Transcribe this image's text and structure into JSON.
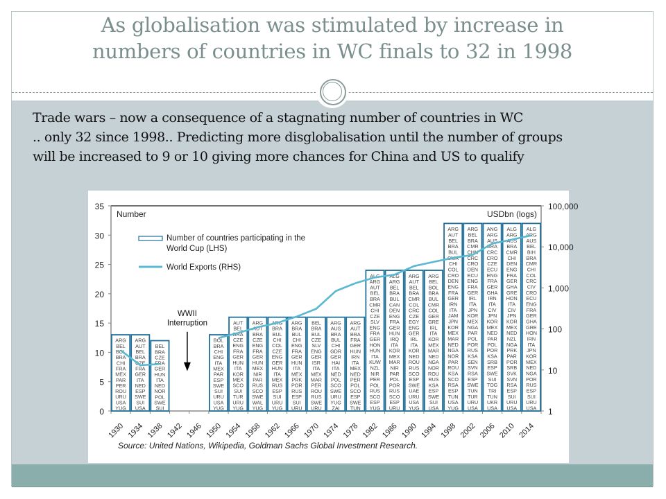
{
  "slide": {
    "title_lines": [
      "As globalisation was stimulated by increase in",
      "numbers of countries in WC finals to 32 in 1998"
    ],
    "body_lines": [
      "Trade wars – now a consequence of a stagnating number of countries in  WC",
      " .. only 32 since 1998.. Predicting more disglobalisation until the number of groups",
      "will be increased to 9 or 10 giving more chances for China and US to qualify"
    ],
    "colors": {
      "title": "#7a8f8d",
      "band": "#c6d1d6",
      "footer": "#8aaeac",
      "bar_border": "#1f6f99",
      "line": "#5ab8d0"
    }
  },
  "chart_data": {
    "type": "bar",
    "title": "",
    "left_axis_label": "Number",
    "right_axis_label": "USDbn (logs)",
    "xlabel": "",
    "ylabel": "Number",
    "ylim": [
      0,
      35
    ],
    "y_ticks": [
      0,
      5,
      10,
      15,
      20,
      25,
      30,
      35
    ],
    "y2lim": [
      1,
      100000
    ],
    "y2_scale": "log",
    "y2_ticks": [
      "1",
      "10",
      "100",
      "1,000",
      "10,000",
      "100,000"
    ],
    "grid": false,
    "legend_position": "top-left",
    "legend": [
      {
        "label_lines": [
          "Number of countries participating in the",
          "World Cup (LHS)"
        ],
        "kind": "bar"
      },
      {
        "label_lines": [
          "World Exports (RHS)"
        ],
        "kind": "line"
      }
    ],
    "annotation": {
      "lines": [
        "WWII",
        "Interruption"
      ],
      "year": "1942-1946"
    },
    "source": "Source: United Nations, Wikipedia, Goldman Sachs Global Investment Research.",
    "categories": [
      "1930",
      "1934",
      "1938",
      "1942",
      "1946",
      "1950",
      "1954",
      "1958",
      "1962",
      "1966",
      "1970",
      "1974",
      "1978",
      "1982",
      "1986",
      "1990",
      "1994",
      "1998",
      "2002",
      "2006",
      "2010",
      "2014"
    ],
    "series": [
      {
        "name": "Number of countries participating in the World Cup (LHS)",
        "axis": "left",
        "values": [
          13,
          13,
          12,
          null,
          null,
          13,
          16,
          16,
          16,
          16,
          16,
          16,
          16,
          24,
          24,
          24,
          24,
          32,
          32,
          32,
          32,
          32
        ],
        "teams": [
          [
            "ARG",
            "BEL",
            "BOL",
            "BRA",
            "CHI",
            "FRA",
            "MEX",
            "PAR",
            "PER",
            "ROU",
            "URU",
            "USA",
            "YUG"
          ],
          [
            "ARG",
            "AUT",
            "BEL",
            "BRA",
            "CZE",
            "FRA",
            "GER",
            "ITA",
            "NED",
            "ESP",
            "SWE",
            "SUI",
            "USA"
          ],
          [
            "BEL",
            "BRA",
            "CZE",
            "FRA",
            "GER",
            "HUN",
            "ITA",
            "NED",
            "NOR",
            "POL",
            "SWE",
            "SUI"
          ],
          [],
          [],
          [
            "BOL",
            "BRA",
            "CHI",
            "ENG",
            "ITA",
            "MEX",
            "PAR",
            "ESP",
            "SWE",
            "SUI",
            "URU",
            "USA",
            "YUG"
          ],
          [
            "AUT",
            "BEL",
            "BRA",
            "CZE",
            "ENG",
            "FRA",
            "GER",
            "HUN",
            "ITA",
            "KOR",
            "MEX",
            "SCO",
            "SUI",
            "TUR",
            "URU",
            "YUG"
          ],
          [
            "ARG",
            "AUT",
            "BRA",
            "CZE",
            "ENG",
            "FRA",
            "GER",
            "HUN",
            "MEX",
            "NIR",
            "PAR",
            "RUS",
            "SCO",
            "SWE",
            "WAL",
            "YUG"
          ],
          [
            "ARG",
            "BRA",
            "BUL",
            "CHI",
            "COL",
            "CZE",
            "ENG",
            "GER",
            "HUN",
            "ITA",
            "MEX",
            "RUS",
            "ESP",
            "SUI",
            "URU",
            "YUG"
          ],
          [
            "ARG",
            "BRA",
            "BUL",
            "CHI",
            "ENG",
            "FRA",
            "GER",
            "HUN",
            "ITA",
            "MEX",
            "PRK",
            "POR",
            "RUS",
            "ESP",
            "SUI",
            "URU"
          ],
          [
            "BEL",
            "BRA",
            "BUL",
            "CZE",
            "SLV",
            "ENG",
            "GER",
            "ISR",
            "ITA",
            "MEX",
            "MAR",
            "PER",
            "ROU",
            "RUS",
            "SWE",
            "URU"
          ],
          [
            "ARG",
            "AUS",
            "BRA",
            "BUL",
            "CHI",
            "GDR",
            "GER",
            "HAI",
            "ITA",
            "NED",
            "POL",
            "SCO",
            "SWE",
            "URU",
            "YUG",
            "ZAI"
          ],
          [
            "ARG",
            "AUT",
            "BRA",
            "FRA",
            "GER",
            "HUN",
            "IRN",
            "ITA",
            "MEX",
            "NED",
            "PER",
            "POL",
            "SCO",
            "ESP",
            "SWE",
            "TUN"
          ],
          [
            "ALG",
            "ARG",
            "AUT",
            "BEL",
            "BRA",
            "CMR",
            "CHI",
            "CZE",
            "SLV",
            "ENG",
            "FRA",
            "GER",
            "HON",
            "HUN",
            "ITA",
            "KUW",
            "NZL",
            "NIR",
            "PER",
            "POL",
            "RUS",
            "SCO",
            "ESP",
            "YUG"
          ],
          [
            "ALG",
            "ARG",
            "BEL",
            "BRA",
            "BUL",
            "CAN",
            "DEN",
            "ENG",
            "FRA",
            "GER",
            "HUN",
            "IRQ",
            "ITA",
            "KOR",
            "MEX",
            "MAR",
            "NIR",
            "PAR",
            "POL",
            "POR",
            "RUS",
            "SCO",
            "ESP",
            "URU"
          ],
          [
            "ARG",
            "AUT",
            "BEL",
            "BRA",
            "CMR",
            "COL",
            "CRC",
            "CZE",
            "EGY",
            "ENG",
            "GER",
            "IRL",
            "ITA",
            "KOR",
            "NED",
            "ROU",
            "RUS",
            "SCO",
            "ESP",
            "SWE",
            "UAE",
            "URU",
            "USA",
            "YUG"
          ],
          [
            "ARG",
            "BEL",
            "BOL",
            "BRA",
            "BUL",
            "CMR",
            "COL",
            "GER",
            "GRE",
            "IRL",
            "ITA",
            "KOR",
            "MEX",
            "MAR",
            "NED",
            "NGA",
            "NOR",
            "ROU",
            "RUS",
            "KSA",
            "ESP",
            "SWE",
            "SUI",
            "USA"
          ],
          [
            "ARG",
            "AUT",
            "BEL",
            "BRA",
            "BUL",
            "CMR",
            "CHI",
            "COL",
            "CRO",
            "DEN",
            "ENG",
            "FRA",
            "GER",
            "IRN",
            "ITA",
            "JAM",
            "JPN",
            "KOR",
            "MEX",
            "MAR",
            "NED",
            "NGA",
            "NOR",
            "PAR",
            "ROU",
            "KSA",
            "SCO",
            "RSA",
            "ESP",
            "TUN",
            "USA",
            "YUG"
          ],
          [
            "ARG",
            "BEL",
            "BRA",
            "CMR",
            "CHN",
            "CRC",
            "CRO",
            "DEN",
            "ECU",
            "ENG",
            "FRA",
            "GER",
            "IRL",
            "ITA",
            "JPN",
            "KOR",
            "MEX",
            "NGA",
            "PAR",
            "POL",
            "POR",
            "RUS",
            "KSA",
            "SEN",
            "SVN",
            "RSA",
            "ESP",
            "SWE",
            "TUN",
            "TUR",
            "URU",
            "USA"
          ],
          [
            "ANG",
            "ARG",
            "AUS",
            "BRA",
            "CRC",
            "CRO",
            "CZE",
            "ECU",
            "ENG",
            "FRA",
            "GER",
            "GHA",
            "IRN",
            "ITA",
            "CIV",
            "JPN",
            "KOR",
            "MEX",
            "NED",
            "PAR",
            "POL",
            "POR",
            "KSA",
            "SRB",
            "ESP",
            "SWE",
            "SUI",
            "TOG",
            "TRI",
            "TUN",
            "UKR",
            "USA"
          ],
          [
            "ALG",
            "ARG",
            "AUS",
            "BRA",
            "CMR",
            "CHI",
            "DEN",
            "ENG",
            "FRA",
            "GER",
            "GHA",
            "GRE",
            "HON",
            "ITA",
            "CIV",
            "JPN",
            "KOR",
            "MEX",
            "NED",
            "NZL",
            "NGA",
            "PRK",
            "PAR",
            "POR",
            "SRB",
            "SVK",
            "SVN",
            "RSA",
            "ESP",
            "SUI",
            "URU",
            "USA"
          ],
          [
            "ALG",
            "ARG",
            "AUS",
            "BEL",
            "BIH",
            "BRA",
            "CMR",
            "CHI",
            "COL",
            "CRC",
            "CIV",
            "CRO",
            "ECU",
            "ENG",
            "FRA",
            "GER",
            "GHA",
            "GRE",
            "HON",
            "IRN",
            "ITA",
            "JPN",
            "KOR",
            "MEX",
            "NED",
            "NGA",
            "POR",
            "RUS",
            "ESP",
            "SUI",
            "URU",
            "USA"
          ]
        ]
      },
      {
        "name": "World Exports (RHS)",
        "axis": "right",
        "unit": "USDbn",
        "values": [
          30,
          13,
          14,
          null,
          null,
          60,
          80,
          110,
          140,
          200,
          310,
          840,
          1300,
          1800,
          2100,
          3400,
          4300,
          5400,
          6400,
          12000,
          15000,
          19000
        ]
      }
    ]
  }
}
